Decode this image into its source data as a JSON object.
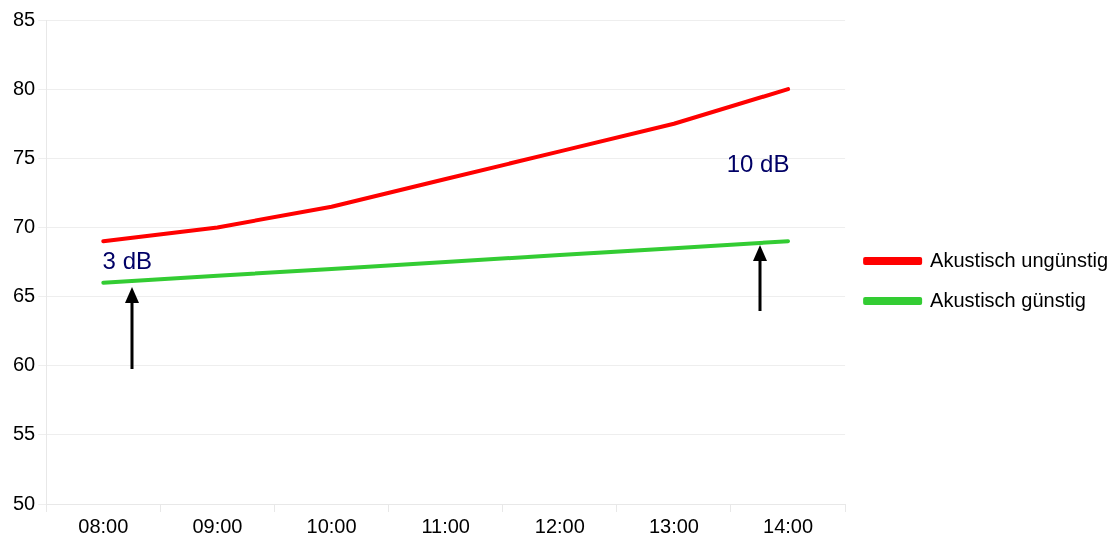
{
  "chart_data": {
    "type": "line",
    "categories": [
      "08:00",
      "09:00",
      "10:00",
      "11:00",
      "12:00",
      "13:00",
      "14:00"
    ],
    "series": [
      {
        "name": "Akustisch ungünstig",
        "color": "#ff0000",
        "values": [
          69,
          70,
          71.5,
          73.5,
          75.5,
          77.5,
          80
        ]
      },
      {
        "name": "Akustisch günstig",
        "color": "#33cc33",
        "values": [
          66,
          66.5,
          67,
          67.5,
          68,
          68.5,
          69
        ]
      }
    ],
    "ylim": [
      50,
      85
    ],
    "yticks": [
      50,
      55,
      60,
      65,
      70,
      75,
      80,
      85
    ],
    "grid": "y",
    "legend": "right",
    "marker": "none",
    "line_style": "solid",
    "annotations": [
      "3 dB",
      "10 dB"
    ]
  }
}
